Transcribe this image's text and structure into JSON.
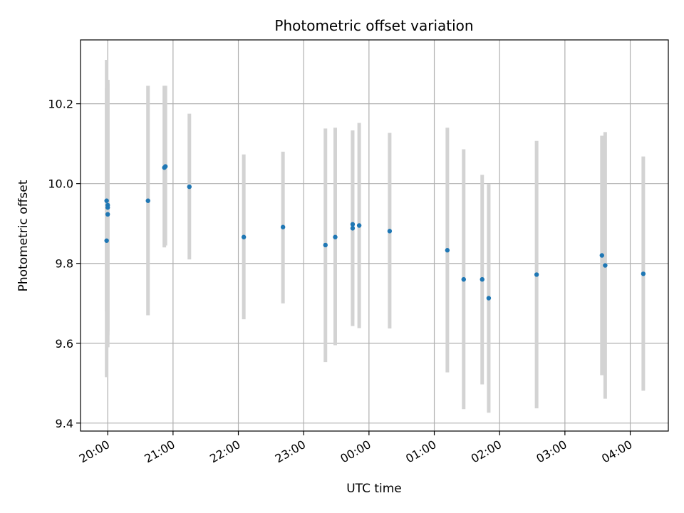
{
  "chart_data": {
    "type": "scatter",
    "title": "Photometric offset variation",
    "xlabel": "UTC time",
    "ylabel": "Photometric offset",
    "x_unit": "UTC hh:mm (times after midnight belong to the following day)",
    "x_ticks": [
      "20:00",
      "21:00",
      "22:00",
      "23:00",
      "00:00",
      "01:00",
      "02:00",
      "03:00",
      "04:00"
    ],
    "y_ticks": [
      "9.4",
      "9.6",
      "9.8",
      "10.0",
      "10.2"
    ],
    "xlim": [
      "19:35",
      "04:35"
    ],
    "ylim": [
      9.38,
      10.36
    ],
    "grid": true,
    "marker_color": "#1f77b4",
    "errorbar_color": "#d3d3d3",
    "points": [
      {
        "x": "19:59",
        "y": 9.957,
        "yerr_low": 9.68,
        "yerr_high": 10.24
      },
      {
        "x": "19:59",
        "y": 9.857,
        "yerr_low": 9.515,
        "yerr_high": 10.31
      },
      {
        "x": "20:00",
        "y": 9.946,
        "yerr_low": 9.63,
        "yerr_high": 10.26
      },
      {
        "x": "20:00",
        "y": 9.94,
        "yerr_low": 9.62,
        "yerr_high": 10.26
      },
      {
        "x": "20:00",
        "y": 9.923,
        "yerr_low": 9.59,
        "yerr_high": 10.25
      },
      {
        "x": "20:37",
        "y": 9.957,
        "yerr_low": 9.67,
        "yerr_high": 10.245
      },
      {
        "x": "20:52",
        "y": 10.04,
        "yerr_low": 9.84,
        "yerr_high": 10.245
      },
      {
        "x": "20:53",
        "y": 10.043,
        "yerr_low": 9.845,
        "yerr_high": 10.245
      },
      {
        "x": "21:15",
        "y": 9.992,
        "yerr_low": 9.81,
        "yerr_high": 10.175
      },
      {
        "x": "22:05",
        "y": 9.866,
        "yerr_low": 9.66,
        "yerr_high": 10.073
      },
      {
        "x": "22:41",
        "y": 9.891,
        "yerr_low": 9.7,
        "yerr_high": 10.08
      },
      {
        "x": "23:20",
        "y": 9.846,
        "yerr_low": 9.553,
        "yerr_high": 10.138
      },
      {
        "x": "23:29",
        "y": 9.866,
        "yerr_low": 9.595,
        "yerr_high": 10.14
      },
      {
        "x": "23:45",
        "y": 9.888,
        "yerr_low": 9.643,
        "yerr_high": 10.133
      },
      {
        "x": "23:45",
        "y": 9.898,
        "yerr_low": 9.66,
        "yerr_high": 10.133
      },
      {
        "x": "23:51",
        "y": 9.895,
        "yerr_low": 9.638,
        "yerr_high": 10.152
      },
      {
        "x": "00:19",
        "y": 9.881,
        "yerr_low": 9.637,
        "yerr_high": 10.127
      },
      {
        "x": "01:12",
        "y": 9.833,
        "yerr_low": 9.527,
        "yerr_high": 10.14
      },
      {
        "x": "01:27",
        "y": 9.76,
        "yerr_low": 9.435,
        "yerr_high": 10.086
      },
      {
        "x": "01:44",
        "y": 9.76,
        "yerr_low": 9.497,
        "yerr_high": 10.022
      },
      {
        "x": "01:50",
        "y": 9.713,
        "yerr_low": 9.426,
        "yerr_high": 9.999
      },
      {
        "x": "02:34",
        "y": 9.772,
        "yerr_low": 9.437,
        "yerr_high": 10.107
      },
      {
        "x": "03:34",
        "y": 9.82,
        "yerr_low": 9.52,
        "yerr_high": 10.12
      },
      {
        "x": "03:37",
        "y": 9.795,
        "yerr_low": 9.461,
        "yerr_high": 10.129
      },
      {
        "x": "04:12",
        "y": 9.774,
        "yerr_low": 9.481,
        "yerr_high": 10.068
      }
    ]
  }
}
